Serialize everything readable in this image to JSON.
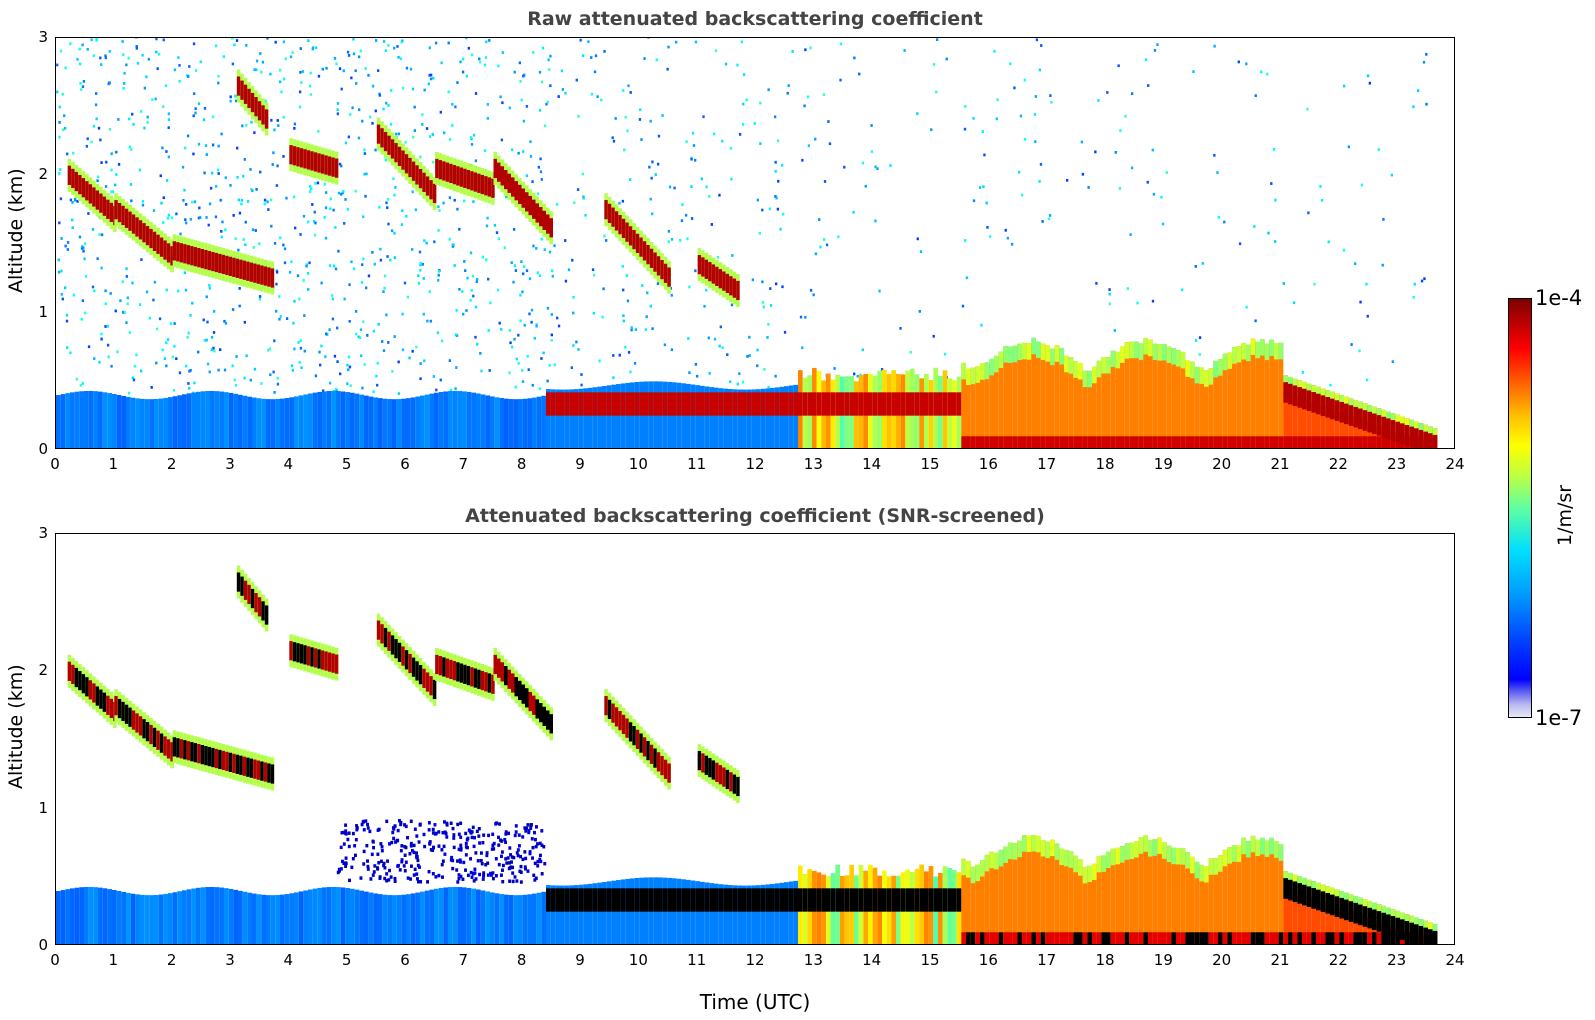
{
  "panels": [
    {
      "title": "Raw attenuated backscattering coefficient",
      "ylabel": "Altitude (km)"
    },
    {
      "title": "Attenuated backscattering coefficient (SNR-screened)",
      "ylabel": "Altitude (km)"
    }
  ],
  "xlabel": "Time (UTC)",
  "colorbar": {
    "max_label": "1e-4",
    "min_label": "1e-7",
    "unit": "1/m/sr"
  },
  "chart_data": [
    {
      "type": "heatmap",
      "title": "Raw attenuated backscattering coefficient",
      "xlabel": "",
      "ylabel": "Altitude (km)",
      "xlim": [
        0,
        24
      ],
      "ylim": [
        0,
        3
      ],
      "xticks": [
        0,
        1,
        2,
        3,
        4,
        5,
        6,
        7,
        8,
        9,
        10,
        11,
        12,
        13,
        14,
        15,
        16,
        17,
        18,
        19,
        20,
        21,
        22,
        23,
        24
      ],
      "yticks": [
        0,
        1,
        2,
        3
      ],
      "colorscale": "jet",
      "clim": [
        1e-07,
        0.0001
      ],
      "features": [
        {
          "time_start": 0.0,
          "time_end": 8.5,
          "alt_top": 0.4,
          "level": "low"
        },
        {
          "time_start": 8.5,
          "time_end": 12.7,
          "alt_top": 0.45,
          "level": "high"
        },
        {
          "time_start": 12.7,
          "time_end": 15.5,
          "alt_top": 0.5,
          "level": "mixed"
        },
        {
          "time_start": 15.5,
          "time_end": 23.6,
          "alt_top": 0.8,
          "level": "high"
        },
        {
          "time_start": 0.2,
          "time_end": 3.7,
          "alt_top": 2.1,
          "level": "cloud"
        },
        {
          "time_start": 5.5,
          "time_end": 8.5,
          "alt_top": 2.4,
          "level": "cloud"
        }
      ]
    },
    {
      "type": "heatmap",
      "title": "Attenuated backscattering coefficient (SNR-screened)",
      "xlabel": "Time (UTC)",
      "ylabel": "Altitude (km)",
      "xlim": [
        0,
        24
      ],
      "ylim": [
        0,
        3
      ],
      "xticks": [
        0,
        1,
        2,
        3,
        4,
        5,
        6,
        7,
        8,
        9,
        10,
        11,
        12,
        13,
        14,
        15,
        16,
        17,
        18,
        19,
        20,
        21,
        22,
        23,
        24
      ],
      "yticks": [
        0,
        1,
        2,
        3
      ],
      "colorscale": "jet",
      "clim": [
        1e-07,
        0.0001
      ]
    }
  ]
}
